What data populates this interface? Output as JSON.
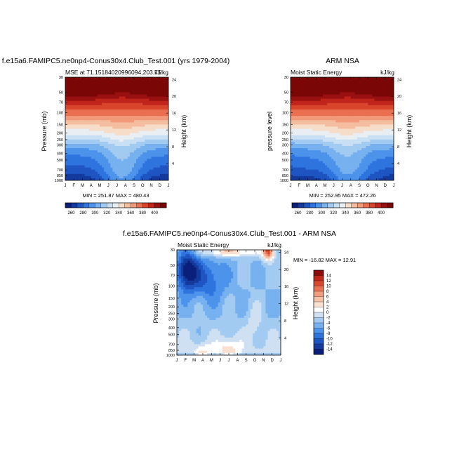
{
  "colors": {
    "mse": [
      "#0a1f7a",
      "#133a9c",
      "#1e55c2",
      "#2f74de",
      "#4d93eb",
      "#77b1ef",
      "#a3cbf2",
      "#c8dff4",
      "#e9eef3",
      "#f6ddca",
      "#f5bda0",
      "#f2997a",
      "#ea6f50",
      "#d9452c",
      "#c0241a",
      "#991010",
      "#7a0606"
    ],
    "diff": [
      "#0a1f7a",
      "#133a9c",
      "#1e55c2",
      "#2f74de",
      "#4d93eb",
      "#77b1ef",
      "#a3cbf2",
      "#cfe0f3",
      "#ffffff",
      "#f9e0d0",
      "#f6c2a6",
      "#f29d7e",
      "#ea7354",
      "#d9492e",
      "#c0261b",
      "#8c0b0b"
    ]
  },
  "chart_data": [
    {
      "type": "heatmap",
      "case_title": "f.e15a6.FAMIPC5.ne0np4-Conus30x4.Club_Test.001 (yrs 1979-2004)",
      "left_label": "MSE at 71.15184020996094,203.75",
      "right_label": "kJ/kg",
      "xlabels": [
        "J",
        "F",
        "M",
        "A",
        "M",
        "J",
        "J",
        "A",
        "S",
        "O",
        "N",
        "D",
        "J"
      ],
      "ylabel": "Pressure (mb)",
      "yticks": [
        30,
        50,
        70,
        100,
        150,
        200,
        250,
        300,
        400,
        500,
        700,
        850,
        1000
      ],
      "ylabel_right": "Height (km)",
      "yticks_right": [
        4,
        8,
        12,
        16,
        20,
        24
      ],
      "stats": "MIN = 251.87 MAX = 480.43",
      "levels": [
        260,
        270,
        280,
        290,
        300,
        310,
        320,
        330,
        340,
        350,
        360,
        370,
        380,
        390,
        400,
        410
      ],
      "colorbar_labels": [
        "260",
        "280",
        "300",
        "320",
        "340",
        "360",
        "380",
        "400"
      ],
      "field_profile": {
        "pressure_mb": [
          1000,
          850,
          700,
          500,
          400,
          300,
          250,
          200,
          150,
          100,
          70,
          50,
          30
        ],
        "mse_kjkg": [
          262,
          268,
          276,
          285,
          292,
          305,
          318,
          333,
          350,
          375,
          395,
          420,
          470
        ]
      }
    },
    {
      "type": "heatmap",
      "case_title": "ARM NSA",
      "left_label": "Moist Static Energy",
      "right_label": "kJ/kg",
      "xlabels": [
        "J",
        "F",
        "M",
        "A",
        "M",
        "J",
        "J",
        "A",
        "S",
        "O",
        "N",
        "D",
        "J"
      ],
      "ylabel": "pressure level",
      "yticks": [
        30,
        50,
        70,
        100,
        150,
        200,
        250,
        300,
        400,
        500,
        700,
        850,
        1000
      ],
      "ylabel_right": "Height (km)",
      "yticks_right": [
        4,
        8,
        12,
        16,
        20,
        24
      ],
      "stats": "MIN = 252.95 MAX = 472.26",
      "levels": [
        260,
        270,
        280,
        290,
        300,
        310,
        320,
        330,
        340,
        350,
        360,
        370,
        380,
        390,
        400,
        410
      ],
      "colorbar_labels": [
        "260",
        "280",
        "300",
        "320",
        "340",
        "360",
        "380",
        "400"
      ]
    },
    {
      "type": "heatmap",
      "case_title": "f.e15a6.FAMIPC5.ne0np4-Conus30x4.Club_Test.001 - ARM NSA",
      "left_label": "Moist Static Energy",
      "right_label": "kJ/kg",
      "xlabels": [
        "J",
        "F",
        "M",
        "A",
        "M",
        "J",
        "J",
        "A",
        "S",
        "O",
        "N",
        "D",
        "J"
      ],
      "ylabel": "Pressure (mb)",
      "yticks": [
        30,
        50,
        70,
        100,
        150,
        200,
        250,
        300,
        400,
        500,
        700,
        850,
        1000
      ],
      "ylabel_right": "Height (km)",
      "yticks_right": [
        4,
        8,
        12,
        16,
        20,
        24
      ],
      "stats": "MIN = -16.82 MAX =  12.91",
      "levels": [
        -14,
        -12,
        -10,
        -8,
        -6,
        -4,
        -2,
        0,
        2,
        4,
        6,
        8,
        10,
        12,
        14
      ],
      "colorbar_labels": [
        "14",
        "12",
        "10",
        "8",
        "6",
        "4",
        "2",
        "0",
        "-2",
        "-4",
        "-6",
        "-8",
        "-10",
        "-12",
        "-14"
      ]
    }
  ]
}
